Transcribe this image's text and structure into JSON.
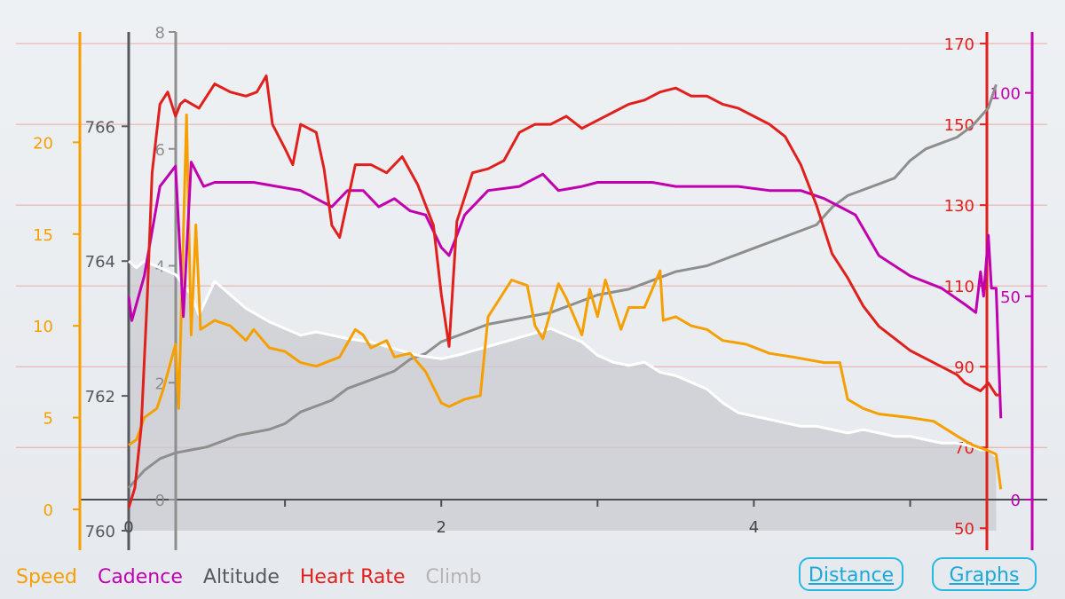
{
  "chart_data": {
    "type": "line",
    "x_axis": {
      "ticks": [
        "0",
        "2",
        "4"
      ],
      "range": [
        0,
        5.65
      ]
    },
    "axes": {
      "speed": {
        "range": [
          0,
          23.5
        ],
        "ticks": [
          "0",
          "5",
          "10",
          "15",
          "20"
        ],
        "color": "#f5a000"
      },
      "altitude": {
        "range": [
          760,
          767.4
        ],
        "ticks": [
          "760",
          "762",
          "764",
          "766"
        ],
        "color": "#555a60"
      },
      "climb": {
        "range": [
          0,
          8
        ],
        "ticks": [
          "0",
          "2",
          "4",
          "6",
          "8"
        ],
        "color": "#8e8e8e"
      },
      "heartrate": {
        "range": [
          45,
          172
        ],
        "ticks": [
          "50",
          "70",
          "90",
          "110",
          "130",
          "150",
          "170"
        ],
        "color": "#e0201c"
      },
      "cadence": {
        "range": [
          0,
          108
        ],
        "ticks": [
          "0",
          "50",
          "100"
        ],
        "color": "#c000b0"
      }
    },
    "series": [
      {
        "name": "Speed",
        "axis": "speed",
        "color": "#f5a000",
        "x": [
          0,
          0.05,
          0.1,
          0.18,
          0.22,
          0.3,
          0.32,
          0.37,
          0.4,
          0.43,
          0.46,
          0.55,
          0.65,
          0.75,
          0.8,
          0.9,
          1.0,
          1.1,
          1.2,
          1.35,
          1.45,
          1.5,
          1.55,
          1.65,
          1.7,
          1.8,
          1.9,
          2.0,
          2.05,
          2.15,
          2.25,
          2.3,
          2.45,
          2.55,
          2.6,
          2.65,
          2.75,
          2.8,
          2.9,
          2.95,
          3.0,
          3.05,
          3.15,
          3.2,
          3.3,
          3.4,
          3.42,
          3.5,
          3.6,
          3.7,
          3.8,
          3.95,
          4.1,
          4.25,
          4.45,
          4.55,
          4.6,
          4.7,
          4.8,
          5.0,
          5.15,
          5.3,
          5.4,
          5.5,
          5.55,
          5.58
        ],
        "values": [
          3.5,
          3.8,
          5,
          5.5,
          6.5,
          9,
          5.5,
          21.5,
          9.5,
          15.5,
          9.8,
          10.3,
          10,
          9.2,
          9.8,
          8.8,
          8.6,
          8,
          7.8,
          8.3,
          9.8,
          9.5,
          8.8,
          9.2,
          8.3,
          8.5,
          7.5,
          5.8,
          5.6,
          6,
          6.2,
          10.5,
          12.5,
          12.2,
          10,
          9.3,
          12.3,
          11.5,
          9.5,
          12,
          10.5,
          12.5,
          9.8,
          11,
          11,
          13,
          10.3,
          10.5,
          10,
          9.8,
          9.2,
          9,
          8.5,
          8.3,
          8,
          8,
          6,
          5.5,
          5.2,
          5,
          4.8,
          4,
          3.5,
          3.2,
          3,
          1.1
        ]
      },
      {
        "name": "Cadence",
        "axis": "cadence",
        "color": "#c000b0",
        "x": [
          0,
          0.02,
          0.1,
          0.2,
          0.3,
          0.35,
          0.4,
          0.48,
          0.55,
          0.65,
          0.8,
          0.95,
          1.1,
          1.2,
          1.3,
          1.4,
          1.5,
          1.6,
          1.7,
          1.8,
          1.9,
          2.0,
          2.05,
          2.15,
          2.3,
          2.5,
          2.65,
          2.75,
          2.9,
          3.0,
          3.2,
          3.35,
          3.5,
          3.7,
          3.9,
          4.1,
          4.3,
          4.45,
          4.55,
          4.65,
          4.8,
          5.0,
          5.2,
          5.35,
          5.42,
          5.45,
          5.47,
          5.5,
          5.52,
          5.55,
          5.58
        ],
        "values": [
          50,
          44,
          55,
          77,
          82,
          45,
          83,
          77,
          78,
          78,
          78,
          77,
          76,
          74,
          72,
          76,
          76,
          72,
          74,
          71,
          70,
          62,
          60,
          70,
          76,
          77,
          80,
          76,
          77,
          78,
          78,
          78,
          77,
          77,
          77,
          76,
          76,
          74,
          72,
          70,
          60,
          55,
          52,
          48,
          46,
          56,
          50,
          65,
          52,
          52,
          20
        ]
      },
      {
        "name": "Altitude",
        "axis": "altitude",
        "color": "#ffffff",
        "x": [
          0,
          0.05,
          0.1,
          0.2,
          0.3,
          0.4,
          0.45,
          0.55,
          0.65,
          0.75,
          0.9,
          1.0,
          1.1,
          1.2,
          1.3,
          1.4,
          1.55,
          1.7,
          1.85,
          2.0,
          2.1,
          2.25,
          2.4,
          2.55,
          2.7,
          2.8,
          2.9,
          3.0,
          3.1,
          3.2,
          3.3,
          3.4,
          3.5,
          3.6,
          3.7,
          3.8,
          3.9,
          4.0,
          4.1,
          4.2,
          4.3,
          4.4,
          4.5,
          4.6,
          4.7,
          4.8,
          4.9,
          5.0,
          5.1,
          5.2,
          5.3,
          5.4,
          5.45,
          5.5,
          5.55
        ],
        "values": [
          764,
          763.9,
          764,
          763.9,
          763.8,
          763.5,
          763.2,
          763.7,
          763.5,
          763.3,
          763.1,
          763,
          762.9,
          762.95,
          762.9,
          762.85,
          762.8,
          762.7,
          762.6,
          762.55,
          762.6,
          762.7,
          762.8,
          762.9,
          763,
          762.9,
          762.8,
          762.6,
          762.5,
          762.45,
          762.5,
          762.35,
          762.3,
          762.2,
          762.1,
          761.9,
          761.75,
          761.7,
          761.65,
          761.6,
          761.55,
          761.55,
          761.5,
          761.45,
          761.5,
          761.45,
          761.4,
          761.4,
          761.35,
          761.3,
          761.3,
          761.25,
          761.2,
          761.2,
          761.1
        ]
      },
      {
        "name": "Heart Rate",
        "axis": "heartrate",
        "color": "#e0201c",
        "x": [
          0,
          0.04,
          0.08,
          0.12,
          0.15,
          0.2,
          0.25,
          0.3,
          0.33,
          0.36,
          0.45,
          0.55,
          0.65,
          0.75,
          0.82,
          0.88,
          0.92,
          1.0,
          1.05,
          1.1,
          1.2,
          1.25,
          1.3,
          1.35,
          1.45,
          1.55,
          1.65,
          1.75,
          1.85,
          1.95,
          2.0,
          2.05,
          2.1,
          2.2,
          2.3,
          2.4,
          2.5,
          2.6,
          2.7,
          2.8,
          2.9,
          3.0,
          3.1,
          3.2,
          3.3,
          3.4,
          3.5,
          3.6,
          3.7,
          3.8,
          3.9,
          4.0,
          4.1,
          4.2,
          4.3,
          4.4,
          4.5,
          4.6,
          4.7,
          4.8,
          4.9,
          5.0,
          5.1,
          5.2,
          5.3,
          5.35,
          5.4,
          5.45,
          5.5,
          5.55,
          5.58
        ],
        "values": [
          55,
          60,
          75,
          108,
          138,
          155,
          158,
          152,
          155,
          156,
          154,
          160,
          158,
          157,
          158,
          162,
          150,
          144,
          140,
          150,
          148,
          139,
          125,
          122,
          140,
          140,
          138,
          142,
          135,
          125,
          108,
          95,
          126,
          138,
          139,
          141,
          148,
          150,
          150,
          152,
          149,
          151,
          153,
          155,
          156,
          158,
          159,
          157,
          157,
          155,
          154,
          152,
          150,
          147,
          140,
          130,
          118,
          112,
          105,
          100,
          97,
          94,
          92,
          90,
          88,
          86,
          85,
          84,
          86,
          83,
          83
        ]
      },
      {
        "name": "Climb",
        "axis": "climb",
        "color": "#8e8e8e",
        "x": [
          0,
          0.1,
          0.2,
          0.3,
          0.4,
          0.5,
          0.6,
          0.7,
          0.8,
          0.9,
          1.0,
          1.1,
          1.2,
          1.3,
          1.4,
          1.5,
          1.6,
          1.7,
          1.8,
          1.9,
          2.0,
          2.1,
          2.2,
          2.3,
          2.4,
          2.5,
          2.6,
          2.7,
          2.8,
          2.9,
          3.0,
          3.1,
          3.2,
          3.3,
          3.4,
          3.5,
          3.6,
          3.7,
          3.8,
          3.9,
          4.0,
          4.1,
          4.2,
          4.3,
          4.4,
          4.5,
          4.6,
          4.7,
          4.8,
          4.9,
          5.0,
          5.1,
          5.2,
          5.3,
          5.4,
          5.5,
          5.55
        ],
        "values": [
          0.2,
          0.5,
          0.7,
          0.8,
          0.85,
          0.9,
          1.0,
          1.1,
          1.15,
          1.2,
          1.3,
          1.5,
          1.6,
          1.7,
          1.9,
          2.0,
          2.1,
          2.2,
          2.4,
          2.5,
          2.7,
          2.8,
          2.9,
          3.0,
          3.05,
          3.1,
          3.15,
          3.2,
          3.3,
          3.4,
          3.5,
          3.55,
          3.6,
          3.7,
          3.8,
          3.9,
          3.95,
          4.0,
          4.1,
          4.2,
          4.3,
          4.4,
          4.5,
          4.6,
          4.7,
          5.0,
          5.2,
          5.3,
          5.4,
          5.5,
          5.8,
          6.0,
          6.1,
          6.2,
          6.4,
          6.7,
          7.1
        ]
      }
    ],
    "legend": [
      "Speed",
      "Cadence",
      "Altitude",
      "Heart Rate",
      "Climb"
    ],
    "legend_colors": [
      "#f5a000",
      "#c000b0",
      "#555a60",
      "#e0201c",
      "#b4b4b4"
    ]
  },
  "buttons": {
    "distance": "Distance",
    "graphs": "Graphs"
  }
}
